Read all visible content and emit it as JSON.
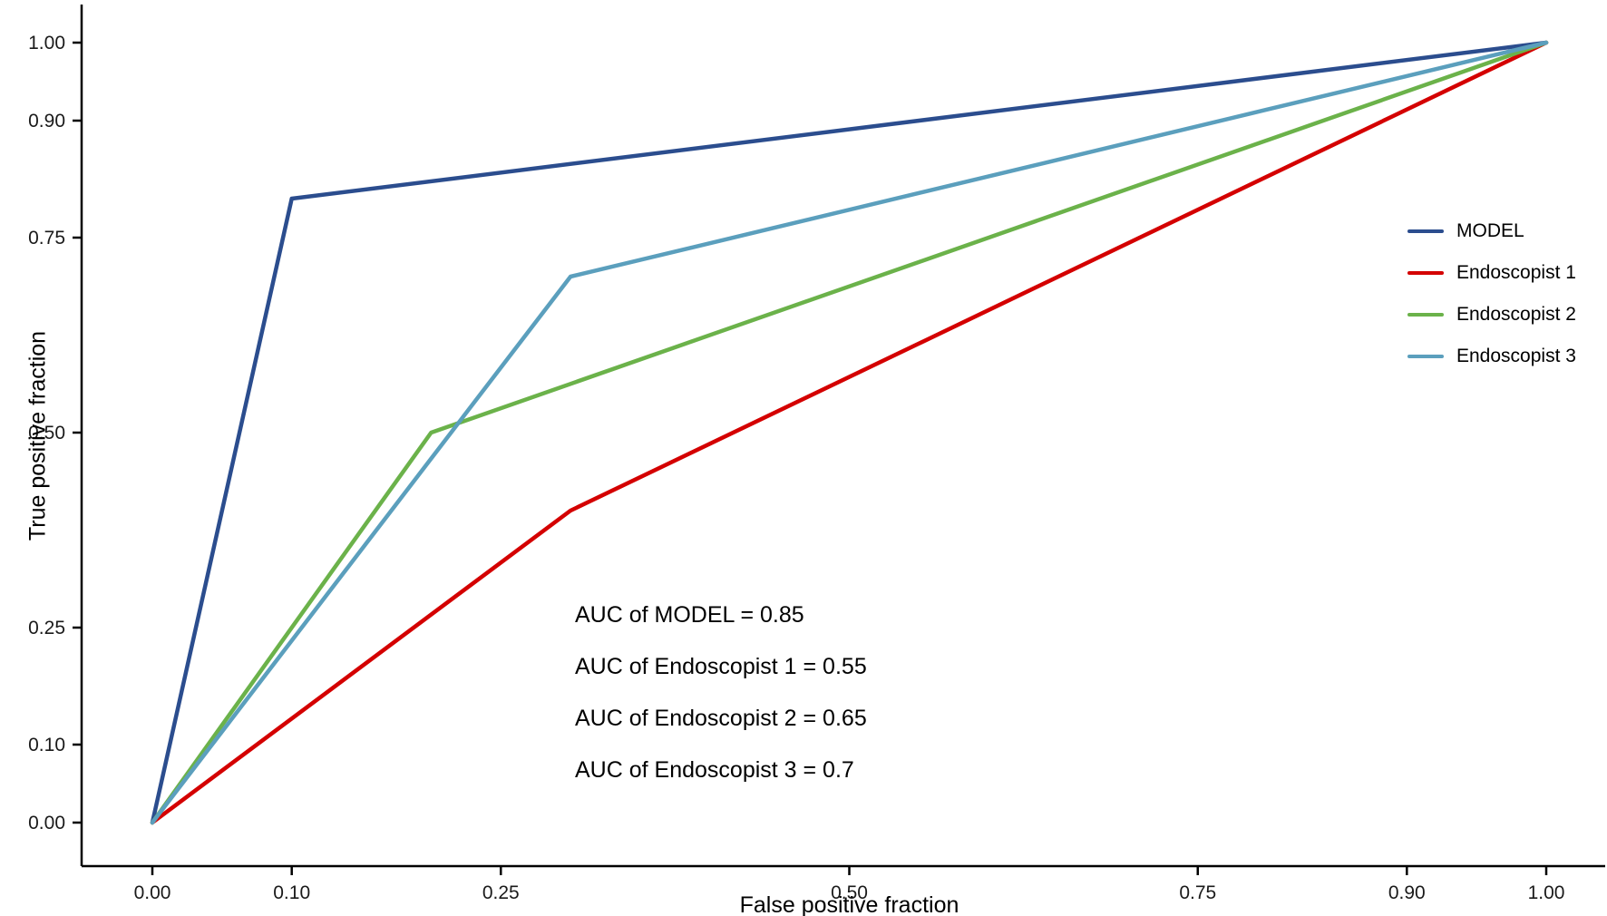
{
  "chart_data": {
    "type": "line",
    "title": "",
    "xlabel": "False positive fraction",
    "ylabel": "True positive fraction",
    "xlim": [
      0,
      1
    ],
    "ylim": [
      0,
      1
    ],
    "grid": false,
    "legend_position": "right-inside",
    "background": "#ffffff",
    "axis_color": "#000000",
    "x_ticks": [
      0.0,
      0.1,
      0.25,
      0.5,
      0.75,
      0.9,
      1.0
    ],
    "y_ticks": [
      0.0,
      0.1,
      0.25,
      0.5,
      0.75,
      0.9,
      1.0
    ],
    "x_tick_labels": [
      "0.00",
      "0.10",
      "0.25",
      "0.50",
      "0.75",
      "0.90",
      "1.00"
    ],
    "y_tick_labels": [
      "0.00",
      "0.10",
      "0.25",
      "0.50",
      "0.75",
      "0.90",
      "1.00"
    ],
    "series": [
      {
        "name": "MODEL",
        "color": "#2b4d8e",
        "auc": 0.85,
        "points": [
          [
            0.0,
            0.0
          ],
          [
            0.1,
            0.8
          ],
          [
            1.0,
            1.0
          ]
        ]
      },
      {
        "name": "Endoscopist 1",
        "color": "#d40000",
        "auc": 0.55,
        "points": [
          [
            0.0,
            0.0
          ],
          [
            0.3,
            0.4
          ],
          [
            1.0,
            1.0
          ]
        ]
      },
      {
        "name": "Endoscopist 2",
        "color": "#6bb24a",
        "auc": 0.65,
        "points": [
          [
            0.0,
            0.0
          ],
          [
            0.2,
            0.5
          ],
          [
            1.0,
            1.0
          ]
        ]
      },
      {
        "name": "Endoscopist 3",
        "color": "#5b9fbd",
        "auc": 0.7,
        "points": [
          [
            0.0,
            0.0
          ],
          [
            0.3,
            0.7
          ],
          [
            1.0,
            1.0
          ]
        ]
      }
    ],
    "annotations": [
      "AUC of MODEL = 0.85",
      "AUC of Endoscopist 1 = 0.55",
      "AUC of Endoscopist 2 = 0.65",
      "AUC of Endoscopist 3 = 0.7"
    ]
  }
}
